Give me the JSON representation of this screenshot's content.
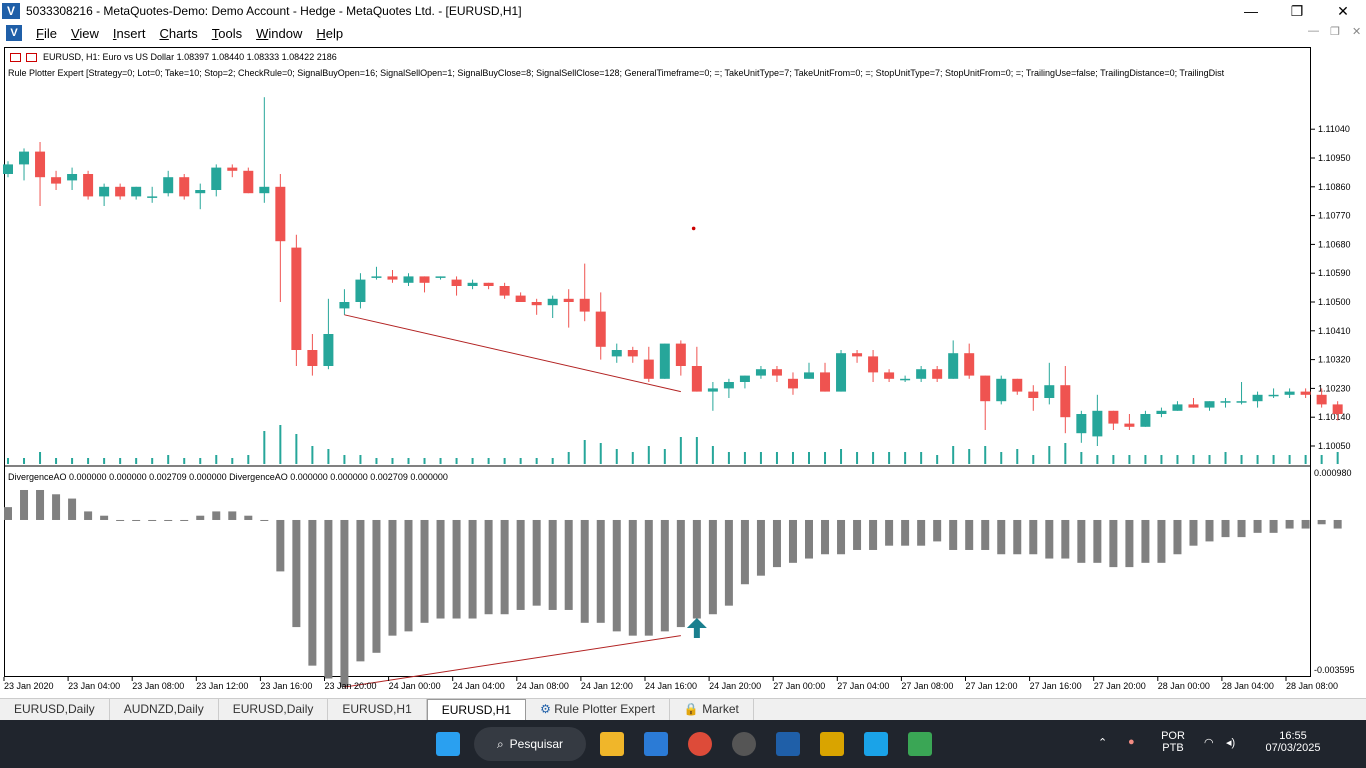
{
  "window": {
    "title": "5033308216 - MetaQuotes-Demo: Demo Account - Hedge - MetaQuotes Ltd. - [EURUSD,H1]",
    "logo": "V",
    "minimize": "—",
    "restore": "❐",
    "close": "✕"
  },
  "menu": {
    "items": [
      "File",
      "View",
      "Insert",
      "Charts",
      "Tools",
      "Window",
      "Help"
    ],
    "mdi_min": "—",
    "mdi_restore": "❐",
    "mdi_close": "✕"
  },
  "chart": {
    "symbol_line": "EURUSD, H1:  Euro vs US Dollar  1.08397 1.08440 1.08333 1.08422  2186",
    "expert_line": "Rule Plotter Expert [Strategy=0; Lot=0; Take=10; Stop=2; CheckRule=0; SignalBuyOpen=16; SignalSellOpen=1; SignalBuyClose=8; SignalSellClose=128; GeneralTimeframe=0; =; TakeUnitType=7; TakeUnitFrom=0; =; StopUnitType=7; StopUnitFrom=0; =; TrailingUse=false; TrailingDistance=0; TrailingDist",
    "indicator_line": "DivergenceAO 0.000000 0.000000 0.002709 0.000000 DivergenceAO 0.000000 0.000000 0.002709 0.000000",
    "bull_color": "#26a69a",
    "bear_color": "#ef5350",
    "ao_color": "#808080",
    "line_color": "#b22222",
    "arrow_color": "#1a7f8e"
  },
  "chart_data": {
    "type": "candlestick",
    "price_axis": {
      "ticks": [
        "1.11040",
        "1.10950",
        "1.10860",
        "1.10770",
        "1.10680",
        "1.10590",
        "1.10500",
        "1.10410",
        "1.10320",
        "1.10230",
        "1.10140",
        "1.10050"
      ],
      "range": [
        1.1,
        1.1125
      ]
    },
    "indicator_axis": {
      "ticks": [
        "0.000980",
        "-0.003595"
      ],
      "range": [
        -0.003595,
        0.00098
      ]
    },
    "time_labels": [
      "23 Jan 2020",
      "23 Jan 04:00",
      "23 Jan 08:00",
      "23 Jan 12:00",
      "23 Jan 16:00",
      "23 Jan 20:00",
      "24 Jan 00:00",
      "24 Jan 04:00",
      "24 Jan 08:00",
      "24 Jan 12:00",
      "24 Jan 16:00",
      "24 Jan 20:00",
      "27 Jan 00:00",
      "27 Jan 04:00",
      "27 Jan 08:00",
      "27 Jan 12:00",
      "27 Jan 16:00",
      "27 Jan 20:00",
      "28 Jan 00:00",
      "28 Jan 04:00",
      "28 Jan 08:00"
    ],
    "candles": [
      [
        1.109,
        1.1094,
        1.1089,
        1.1093
      ],
      [
        1.1093,
        1.1098,
        1.1088,
        1.1097
      ],
      [
        1.1097,
        1.11,
        1.108,
        1.1089
      ],
      [
        1.1089,
        1.1091,
        1.1085,
        1.1087
      ],
      [
        1.1088,
        1.1092,
        1.1085,
        1.109
      ],
      [
        1.109,
        1.1091,
        1.1082,
        1.1083
      ],
      [
        1.1083,
        1.1087,
        1.108,
        1.1086
      ],
      [
        1.1086,
        1.1087,
        1.1082,
        1.1083
      ],
      [
        1.1083,
        1.1086,
        1.1082,
        1.1086
      ],
      [
        1.1083,
        1.1086,
        1.1081,
        1.1083
      ],
      [
        1.1084,
        1.1091,
        1.1083,
        1.1089
      ],
      [
        1.1089,
        1.109,
        1.1082,
        1.1083
      ],
      [
        1.1084,
        1.1087,
        1.1079,
        1.1085
      ],
      [
        1.1085,
        1.1093,
        1.1083,
        1.1092
      ],
      [
        1.1092,
        1.1093,
        1.1089,
        1.1091
      ],
      [
        1.1091,
        1.1092,
        1.1084,
        1.1084
      ],
      [
        1.1084,
        1.1114,
        1.1081,
        1.1086
      ],
      [
        1.1086,
        1.109,
        1.105,
        1.1069
      ],
      [
        1.1067,
        1.1071,
        1.103,
        1.1035
      ],
      [
        1.1035,
        1.104,
        1.1027,
        1.103
      ],
      [
        1.103,
        1.1051,
        1.1029,
        1.104
      ],
      [
        1.1048,
        1.1054,
        1.1046,
        1.105
      ],
      [
        1.105,
        1.1059,
        1.1048,
        1.1057
      ],
      [
        1.1058,
        1.1061,
        1.1057,
        1.1058
      ],
      [
        1.1058,
        1.106,
        1.1056,
        1.1057
      ],
      [
        1.1056,
        1.1059,
        1.1055,
        1.1058
      ],
      [
        1.1058,
        1.1058,
        1.1053,
        1.1056
      ],
      [
        1.1058,
        1.1058,
        1.1057,
        1.1058
      ],
      [
        1.1057,
        1.1058,
        1.1052,
        1.1055
      ],
      [
        1.1055,
        1.1057,
        1.1054,
        1.1056
      ],
      [
        1.1056,
        1.1056,
        1.1054,
        1.1055
      ],
      [
        1.1055,
        1.1056,
        1.1051,
        1.1052
      ],
      [
        1.1052,
        1.1053,
        1.105,
        1.105
      ],
      [
        1.105,
        1.1051,
        1.1046,
        1.1049
      ],
      [
        1.1049,
        1.1052,
        1.1045,
        1.1051
      ],
      [
        1.1051,
        1.1054,
        1.1042,
        1.105
      ],
      [
        1.1051,
        1.1062,
        1.1044,
        1.1047
      ],
      [
        1.1047,
        1.1053,
        1.1032,
        1.1036
      ],
      [
        1.1033,
        1.1037,
        1.1031,
        1.1035
      ],
      [
        1.1035,
        1.1036,
        1.1031,
        1.1033
      ],
      [
        1.1032,
        1.1036,
        1.1025,
        1.1026
      ],
      [
        1.1026,
        1.1037,
        1.1026,
        1.1037
      ],
      [
        1.1037,
        1.1038,
        1.1027,
        1.103
      ],
      [
        1.103,
        1.1036,
        1.1022,
        1.1022
      ],
      [
        1.1022,
        1.1025,
        1.1016,
        1.1023
      ],
      [
        1.1023,
        1.1026,
        1.102,
        1.1025
      ],
      [
        1.1025,
        1.1027,
        1.1023,
        1.1027
      ],
      [
        1.1027,
        1.103,
        1.1026,
        1.1029
      ],
      [
        1.1029,
        1.103,
        1.1025,
        1.1027
      ],
      [
        1.1026,
        1.1028,
        1.1021,
        1.1023
      ],
      [
        1.1026,
        1.1031,
        1.1026,
        1.1028
      ],
      [
        1.1028,
        1.1031,
        1.1022,
        1.1022
      ],
      [
        1.1022,
        1.1035,
        1.1022,
        1.1034
      ],
      [
        1.1034,
        1.1035,
        1.1031,
        1.1033
      ],
      [
        1.1033,
        1.1035,
        1.1025,
        1.1028
      ],
      [
        1.1028,
        1.1029,
        1.1025,
        1.1026
      ],
      [
        1.1026,
        1.1027,
        1.1025,
        1.1026
      ],
      [
        1.1026,
        1.103,
        1.1025,
        1.1029
      ],
      [
        1.1029,
        1.103,
        1.1025,
        1.1026
      ],
      [
        1.1026,
        1.1038,
        1.1026,
        1.1034
      ],
      [
        1.1034,
        1.1037,
        1.1026,
        1.1027
      ],
      [
        1.1027,
        1.1026,
        1.101,
        1.1019
      ],
      [
        1.1019,
        1.1027,
        1.1018,
        1.1026
      ],
      [
        1.1026,
        1.1026,
        1.1021,
        1.1022
      ],
      [
        1.1022,
        1.1024,
        1.1016,
        1.102
      ],
      [
        1.102,
        1.1031,
        1.1018,
        1.1024
      ],
      [
        1.1024,
        1.103,
        1.1009,
        1.1014
      ],
      [
        1.1009,
        1.1016,
        1.1006,
        1.1015
      ],
      [
        1.1008,
        1.1021,
        1.1005,
        1.1016
      ],
      [
        1.1016,
        1.1016,
        1.101,
        1.1012
      ],
      [
        1.1012,
        1.1015,
        1.101,
        1.1011
      ],
      [
        1.1011,
        1.1016,
        1.1011,
        1.1015
      ],
      [
        1.1015,
        1.1017,
        1.1014,
        1.1016
      ],
      [
        1.1016,
        1.1019,
        1.1016,
        1.1018
      ],
      [
        1.1018,
        1.102,
        1.1017,
        1.1017
      ],
      [
        1.1017,
        1.1019,
        1.1016,
        1.1019
      ],
      [
        1.1019,
        1.102,
        1.1017,
        1.1019
      ],
      [
        1.1019,
        1.1025,
        1.1018,
        1.1019
      ],
      [
        1.1019,
        1.1022,
        1.1017,
        1.1021
      ],
      [
        1.1021,
        1.1023,
        1.102,
        1.1021
      ],
      [
        1.1021,
        1.1023,
        1.102,
        1.1022
      ],
      [
        1.1022,
        1.1023,
        1.102,
        1.1021
      ],
      [
        1.1021,
        1.1023,
        1.1017,
        1.1018
      ],
      [
        1.1018,
        1.1019,
        1.1013,
        1.1015
      ]
    ],
    "volumes": [
      2,
      2,
      4,
      2,
      2,
      2,
      2,
      2,
      2,
      2,
      3,
      2,
      2,
      3,
      2,
      3,
      11,
      13,
      10,
      6,
      5,
      3,
      3,
      2,
      2,
      2,
      2,
      2,
      2,
      2,
      2,
      2,
      2,
      2,
      2,
      4,
      8,
      7,
      5,
      4,
      6,
      5,
      9,
      9,
      6,
      4,
      4,
      4,
      4,
      4,
      4,
      4,
      5,
      4,
      4,
      4,
      4,
      4,
      3,
      6,
      5,
      6,
      4,
      5,
      3,
      6,
      7,
      4,
      3,
      3,
      3,
      3,
      3,
      3,
      3,
      3,
      4,
      3,
      3,
      3,
      3,
      3,
      3,
      4
    ],
    "ao": [
      0.0003,
      0.0007,
      0.0007,
      0.0006,
      0.0005,
      0.0002,
      0.0001,
      0.0,
      0.0,
      0.0,
      0.0,
      0.0,
      0.0001,
      0.0002,
      0.0002,
      0.0001,
      0.0,
      -0.0012,
      -0.0025,
      -0.0034,
      -0.0037,
      -0.0039,
      -0.0033,
      -0.0031,
      -0.0027,
      -0.0026,
      -0.0024,
      -0.0023,
      -0.0023,
      -0.0023,
      -0.0022,
      -0.0022,
      -0.0021,
      -0.002,
      -0.0021,
      -0.0021,
      -0.0024,
      -0.0024,
      -0.0026,
      -0.0027,
      -0.0027,
      -0.0026,
      -0.0025,
      -0.0023,
      -0.0022,
      -0.002,
      -0.0015,
      -0.0013,
      -0.0011,
      -0.001,
      -0.0009,
      -0.0008,
      -0.0008,
      -0.0007,
      -0.0007,
      -0.0006,
      -0.0006,
      -0.0006,
      -0.0005,
      -0.0007,
      -0.0007,
      -0.0007,
      -0.0008,
      -0.0008,
      -0.0008,
      -0.0009,
      -0.0009,
      -0.001,
      -0.001,
      -0.0011,
      -0.0011,
      -0.001,
      -0.001,
      -0.0008,
      -0.0006,
      -0.0005,
      -0.0004,
      -0.0004,
      -0.0003,
      -0.0003,
      -0.0002,
      -0.0002,
      -0.0001,
      -0.0002
    ]
  },
  "tabs": [
    "EURUSD,Daily",
    "AUDNZD,Daily",
    "EURUSD,Daily",
    "EURUSD,H1",
    "EURUSD,H1",
    "Rule Plotter Expert",
    "Market"
  ],
  "taskbar": {
    "search": "Pesquisar",
    "lang1": "POR",
    "lang2": "PTB",
    "time": "16:55",
    "date": "07/03/2025"
  }
}
